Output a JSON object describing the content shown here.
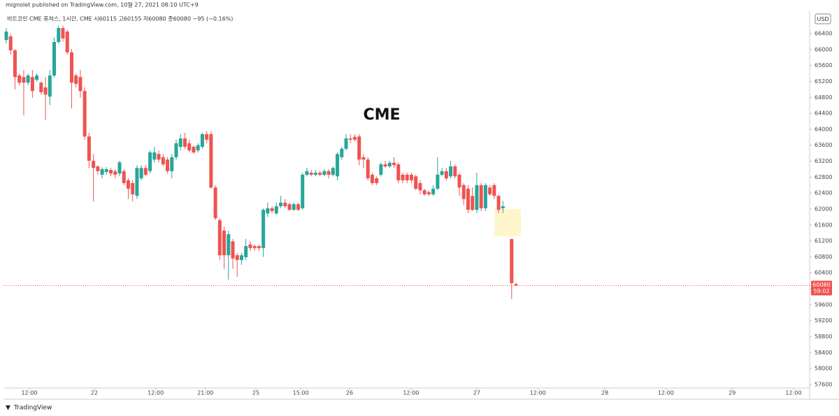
{
  "chart_data": {
    "type": "candlestick",
    "attribution": "mignolet published on TradingView.com, 10월 27, 2021 08:10 UTC+9",
    "legend_text": "비트코인 CME 퓨쳐스, 1시간, CME  시60115 고60155 저60080 종60080 −95 (−0.16%)",
    "currency": "USD",
    "annotation": "CME",
    "countdown": "59:02",
    "brand": "TradingView",
    "up_color": "#26a69a",
    "down_color": "#ef5350",
    "last_price_line": true,
    "x": [
      0,
      1,
      2,
      3,
      4,
      5,
      6,
      7,
      8,
      9,
      10,
      11,
      12,
      13,
      14,
      15,
      16,
      17,
      18,
      19,
      20,
      21,
      22,
      23,
      24,
      25,
      26,
      27,
      28,
      29,
      30,
      31,
      32,
      33,
      34,
      35,
      36,
      37,
      38,
      39,
      40,
      41,
      42,
      43,
      44,
      45,
      46,
      47,
      48,
      49,
      50,
      51,
      52,
      53,
      54,
      55,
      56,
      57,
      58,
      59,
      60,
      61,
      62,
      63,
      64,
      65,
      66,
      67,
      68,
      69,
      70,
      71,
      72,
      73,
      74,
      75,
      76,
      77,
      78,
      79,
      80,
      81,
      82,
      83,
      84,
      85,
      86,
      87,
      88,
      89,
      90,
      91,
      92,
      93,
      94,
      95,
      96,
      97,
      98,
      99,
      100,
      101,
      102,
      103,
      104,
      105,
      106,
      107,
      108,
      109,
      110,
      111,
      112,
      113,
      114,
      116,
      117
    ],
    "open": [
      66240,
      66330,
      65980,
      65350,
      65310,
      65170,
      65310,
      65240,
      65170,
      65050,
      64820,
      65350,
      66190,
      66540,
      66450,
      65930,
      65350,
      65310,
      64960,
      63820,
      63210,
      63070,
      62860,
      62930,
      62980,
      62950,
      62890,
      62950,
      62720,
      62650,
      62330,
      62770,
      63030,
      62950,
      63240,
      63380,
      63300,
      63240,
      62950,
      63300,
      63560,
      63770,
      63650,
      63560,
      63470,
      63560,
      63880,
      63880,
      62540,
      61720,
      61460,
      60840,
      61190,
      60840,
      60720,
      60790,
      61110,
      61070,
      61070,
      61020,
      61890,
      62020,
      61890,
      62070,
      62160,
      62120,
      61980,
      62120,
      62020,
      62860,
      62910,
      62860,
      62910,
      62860,
      62950,
      62860,
      62820,
      63300,
      63510,
      63770,
      63810,
      63820,
      63300,
      63240,
      62860,
      62770,
      62860,
      63120,
      63070,
      63160,
      63120,
      62860,
      62860,
      62860,
      62820,
      62650,
      62470,
      62420,
      62370,
      62510,
      62860,
      62950,
      62820,
      63070,
      62860,
      62600,
      62510,
      62330,
      61980,
      62600,
      62020,
      62540,
      62600,
      62330,
      62020,
      61250,
      60115
    ],
    "high": [
      66540,
      66400,
      66010,
      65400,
      65490,
      65400,
      65490,
      65400,
      65200,
      65310,
      65490,
      66300,
      66600,
      66600,
      66500,
      66010,
      65400,
      65490,
      65050,
      63910,
      63380,
      63100,
      63050,
      63050,
      63030,
      63000,
      63210,
      63000,
      62770,
      62720,
      63100,
      63100,
      63100,
      63470,
      63560,
      63470,
      63380,
      63300,
      63380,
      63740,
      63880,
      63910,
      63740,
      63600,
      63650,
      63910,
      63950,
      63950,
      62600,
      61770,
      61560,
      61460,
      61250,
      60900,
      60900,
      61250,
      61190,
      61110,
      61110,
      62020,
      62160,
      62070,
      62160,
      62330,
      62250,
      62160,
      62160,
      62160,
      62910,
      63030,
      62980,
      62980,
      62950,
      63000,
      63000,
      63070,
      63420,
      63560,
      63880,
      63880,
      63880,
      63880,
      63380,
      63300,
      62910,
      62820,
      63170,
      63210,
      63210,
      63300,
      63170,
      62910,
      62910,
      62910,
      62860,
      62720,
      62510,
      62470,
      62600,
      63300,
      63030,
      63030,
      63210,
      63120,
      62910,
      62650,
      62600,
      62540,
      62910,
      62650,
      62650,
      62600,
      62650,
      62370,
      62200,
      61250,
      60155
    ],
    "low": [
      66150,
      65870,
      65000,
      65100,
      64350,
      65100,
      64790,
      65200,
      64870,
      64230,
      64610,
      65300,
      66150,
      66200,
      65870,
      64520,
      65050,
      64790,
      63740,
      63030,
      62190,
      62860,
      62770,
      62860,
      62820,
      62770,
      62820,
      62600,
      62250,
      62190,
      62250,
      62720,
      62820,
      62890,
      63170,
      63170,
      63070,
      62890,
      62770,
      63240,
      63470,
      63510,
      63420,
      63380,
      63420,
      63510,
      63650,
      62510,
      61720,
      60720,
      60500,
      60230,
      60500,
      60300,
      60600,
      60720,
      60950,
      60950,
      60950,
      60800,
      61800,
      61890,
      61850,
      62020,
      62020,
      61950,
      61950,
      61950,
      61980,
      62820,
      62820,
      62820,
      62820,
      62820,
      62770,
      62820,
      62720,
      63240,
      63470,
      63650,
      63700,
      63100,
      63030,
      62720,
      62600,
      62600,
      62820,
      63030,
      63030,
      63030,
      62650,
      62650,
      62650,
      62650,
      62470,
      62370,
      62330,
      62330,
      62330,
      62470,
      62820,
      62720,
      62770,
      62770,
      62330,
      62100,
      61900,
      61950,
      61900,
      61950,
      61950,
      62330,
      62250,
      61900,
      61900,
      59740,
      60080
    ],
    "close": [
      66450,
      65980,
      65310,
      65170,
      65170,
      65350,
      64960,
      65350,
      64930,
      64870,
      65350,
      66190,
      66540,
      66280,
      65930,
      65170,
      65140,
      64960,
      63820,
      63210,
      63030,
      62950,
      63000,
      63000,
      62890,
      62860,
      63170,
      62650,
      62510,
      62370,
      63030,
      63030,
      62860,
      63420,
      63420,
      63240,
      63120,
      62950,
      63300,
      63650,
      63770,
      63560,
      63470,
      63420,
      63600,
      63880,
      63740,
      62540,
      61770,
      60840,
      60840,
      61370,
      60760,
      60720,
      60840,
      61070,
      61020,
      61020,
      61020,
      61980,
      62020,
      61950,
      62070,
      62160,
      62070,
      61980,
      62120,
      61980,
      62860,
      62950,
      62860,
      62910,
      62860,
      62950,
      62860,
      63030,
      63380,
      63510,
      63770,
      63740,
      63740,
      63240,
      63240,
      62770,
      62650,
      62650,
      63120,
      63070,
      63160,
      63100,
      62720,
      62720,
      62720,
      62720,
      62510,
      62470,
      62370,
      62370,
      62510,
      62860,
      62950,
      62770,
      63070,
      62820,
      62540,
      62250,
      61980,
      61980,
      62600,
      62020,
      62600,
      62370,
      62330,
      61980,
      62070,
      60140,
      60080
    ],
    "xlim": [
      -0.64,
      184.4
    ],
    "ylim": [
      57510,
      66980
    ],
    "xticks": [
      {
        "value": 5.3,
        "label": "12:00"
      },
      {
        "value": 20.2,
        "label": "22"
      },
      {
        "value": 34.3,
        "label": "12:00"
      },
      {
        "value": 45.7,
        "label": "21:00"
      },
      {
        "value": 57.3,
        "label": "25"
      },
      {
        "value": 67.6,
        "label": "15:00"
      },
      {
        "value": 78.8,
        "label": "26"
      },
      {
        "value": 92.9,
        "label": "12:00"
      },
      {
        "value": 108.0,
        "label": "27"
      },
      {
        "value": 122.0,
        "label": "12:00"
      },
      {
        "value": 137.4,
        "label": "28"
      },
      {
        "value": 151.4,
        "label": "12:00"
      },
      {
        "value": 166.6,
        "label": "29"
      },
      {
        "value": 180.7,
        "label": "12:00"
      }
    ],
    "yticks": [
      57600,
      58000,
      58400,
      58800,
      59200,
      59600,
      60000,
      60400,
      60800,
      61200,
      61600,
      62000,
      62400,
      62800,
      63200,
      63600,
      64000,
      64400,
      64800,
      65200,
      65600,
      66000,
      66400
    ]
  }
}
